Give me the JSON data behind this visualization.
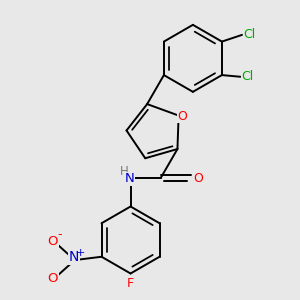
{
  "background_color": "#e8e8e8",
  "bond_color": "#000000",
  "atom_colors": {
    "N": "#0000cc",
    "O": "#ff0000",
    "F": "#ff0000",
    "Cl": "#00aa00",
    "H": "#777777"
  },
  "figsize": [
    3.0,
    3.0
  ],
  "dpi": 100,
  "lw": 1.4
}
